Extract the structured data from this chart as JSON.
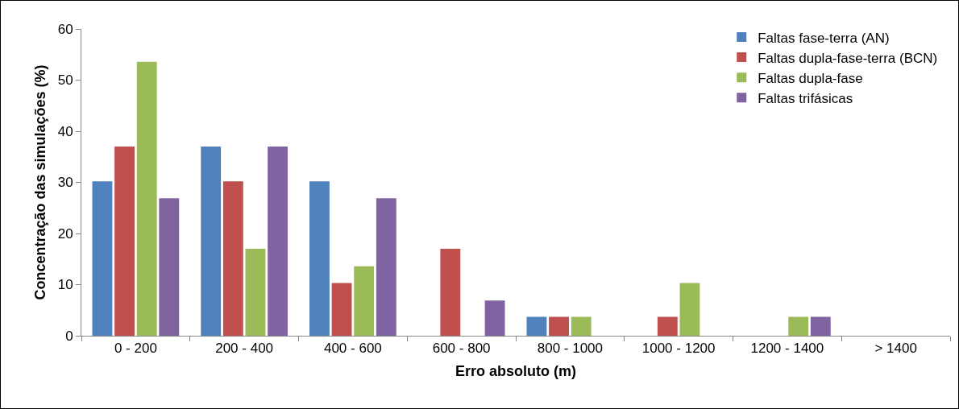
{
  "chart_data": {
    "type": "bar",
    "xlabel": "Erro absoluto (m)",
    "ylabel": "Concentração das simulações (%)",
    "categories": [
      "0 - 200",
      "200 - 400",
      "400 - 600",
      "600 - 800",
      "800 - 1000",
      "1000 - 1200",
      "1200 - 1400",
      "> 1400"
    ],
    "series": [
      {
        "name": "Faltas fase-terra (AN)",
        "color": "#4f81bd",
        "values": [
          30.2,
          37,
          30.2,
          0,
          3.7,
          0,
          0,
          0
        ]
      },
      {
        "name": "Faltas dupla-fase-terra (BCN)",
        "color": "#c0504d",
        "values": [
          37,
          30.2,
          10.3,
          17,
          3.7,
          3.7,
          0,
          0
        ]
      },
      {
        "name": "Faltas dupla-fase",
        "color": "#9bbb59",
        "values": [
          53.6,
          17,
          13.6,
          0,
          3.7,
          10.3,
          3.7,
          0
        ]
      },
      {
        "name": "Faltas trifásicas",
        "color": "#8064a2",
        "values": [
          26.9,
          37,
          26.9,
          6.9,
          0,
          0,
          3.7,
          0
        ]
      }
    ],
    "ylim": [
      0,
      60
    ],
    "yticks": [
      0,
      10,
      20,
      30,
      40,
      50,
      60
    ],
    "grid": false,
    "legend": "top right"
  }
}
